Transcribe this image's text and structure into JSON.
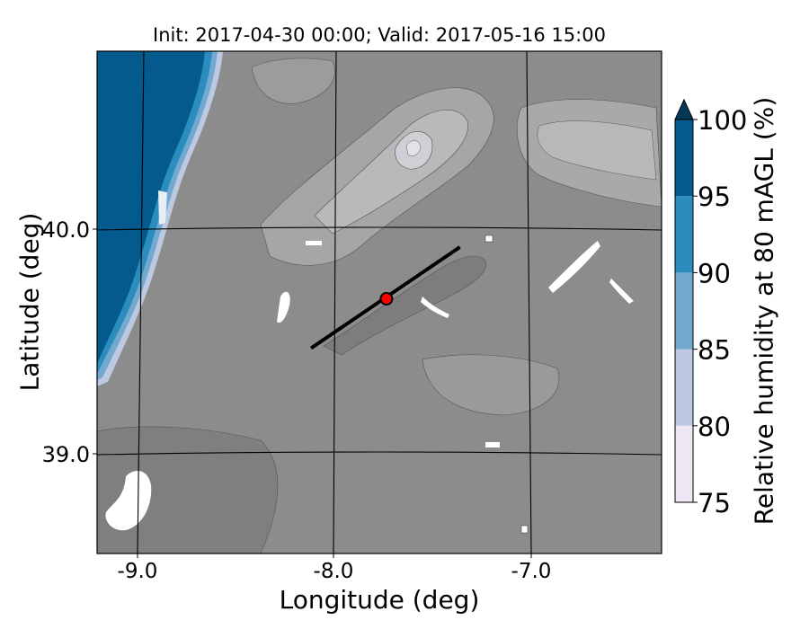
{
  "chart_data": {
    "type": "heatmap",
    "title": "Init: 2017-04-30 00:00; Valid: 2017-05-16 15:00",
    "xlabel": "Longitude (deg)",
    "ylabel": "Latitude (deg)",
    "xlim": [
      -9.25,
      -6.37
    ],
    "ylim": [
      38.55,
      40.8
    ],
    "x_ticks": [
      {
        "value": -9.0,
        "label": "-9.0"
      },
      {
        "value": -8.0,
        "label": "-8.0"
      },
      {
        "value": -7.0,
        "label": "-7.0"
      }
    ],
    "y_ticks": [
      {
        "value": 40.0,
        "label": "40.0"
      },
      {
        "value": 39.0,
        "label": "39.0"
      }
    ],
    "grid": true,
    "colorbar": {
      "label": "Relative humidity at 80 mAGL (%)",
      "min": 75,
      "max": 100,
      "extend": "max",
      "levels": [
        75,
        80,
        85,
        90,
        95,
        100
      ],
      "colors": [
        "#ece7f2",
        "#bdc9e1",
        "#74a9cf",
        "#2b8cbe",
        "#045a8d"
      ],
      "extend_color": "#023858",
      "ticks": [
        {
          "value": 75,
          "label": "75"
        },
        {
          "value": 80,
          "label": "80"
        },
        {
          "value": 85,
          "label": "85"
        },
        {
          "value": 90,
          "label": "90"
        },
        {
          "value": 95,
          "label": "95"
        },
        {
          "value": 100,
          "label": "100"
        }
      ]
    },
    "transect": {
      "start": [
        -8.13,
        39.47
      ],
      "end": [
        -7.36,
        39.92
      ]
    },
    "marker": {
      "lon": -7.74,
      "lat": 39.69,
      "color": "#ff0000"
    }
  }
}
